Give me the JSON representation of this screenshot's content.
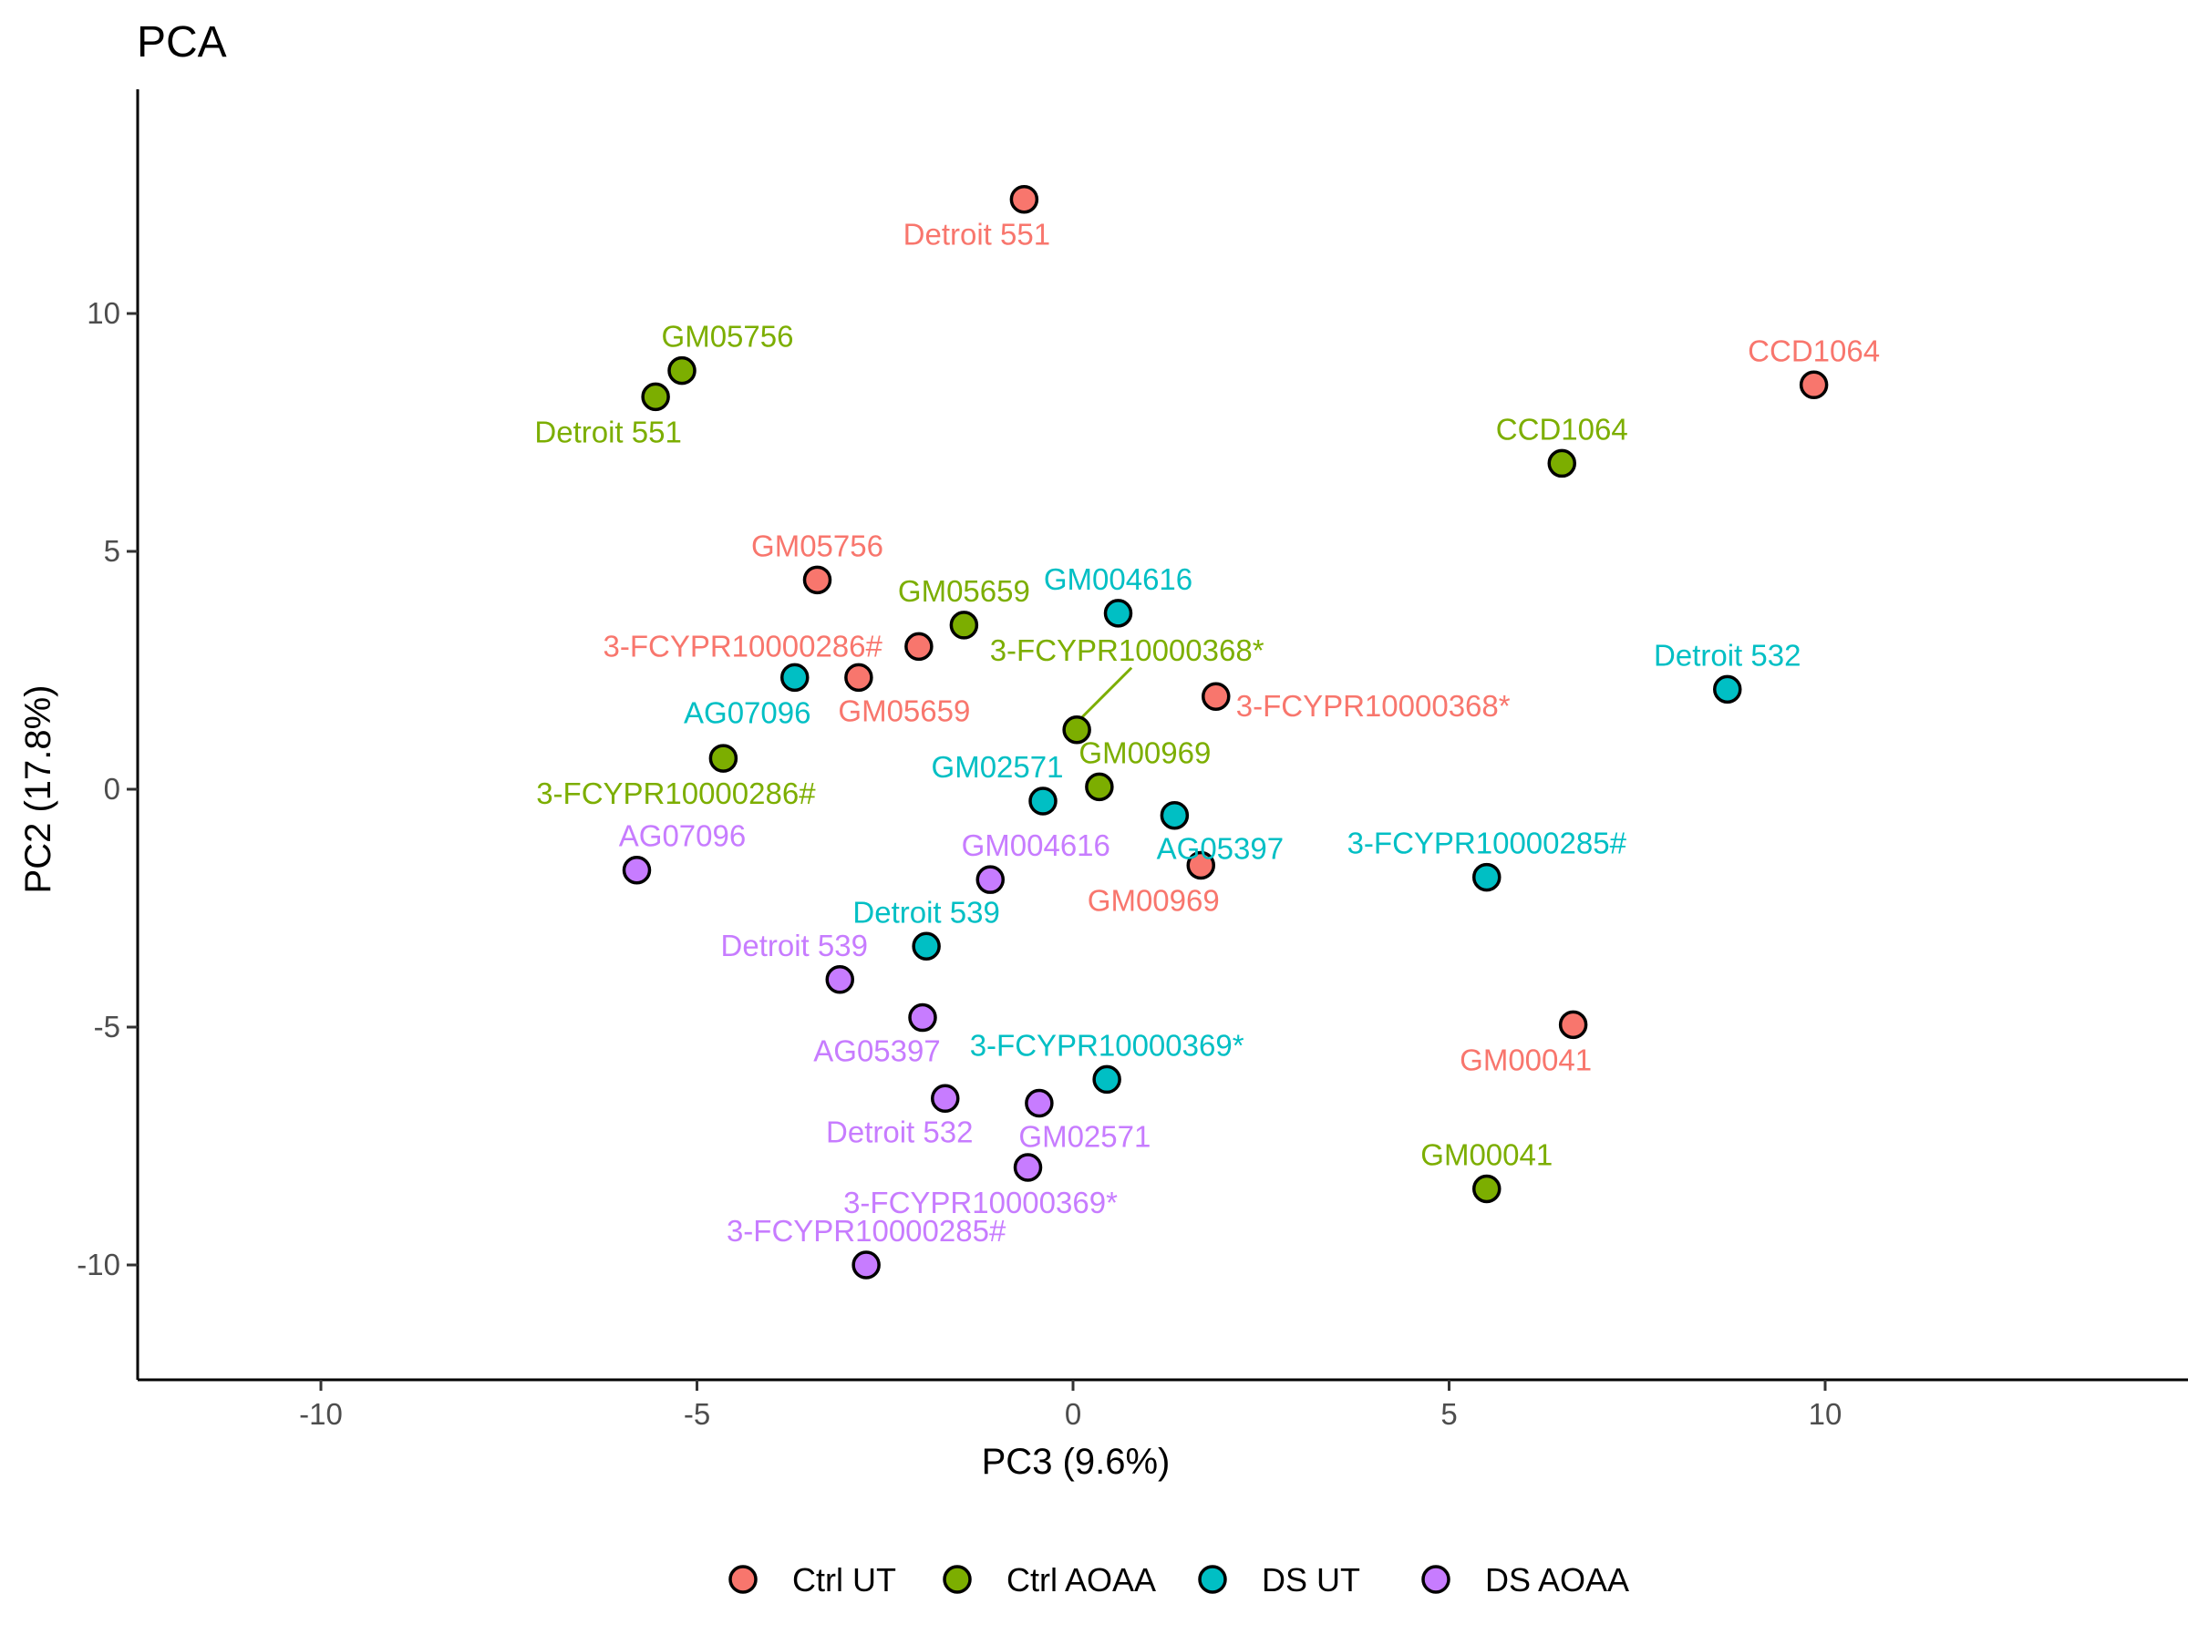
{
  "chart_data": {
    "type": "scatter",
    "title": "PCA",
    "xlabel": "PC3 (9.6%)",
    "ylabel": "PC2 (17.8%)",
    "xlim": [
      -12.4,
      14.8
    ],
    "ylim": [
      -12.5,
      14.6
    ],
    "xticks": [
      -10,
      -5,
      0,
      5,
      10
    ],
    "yticks": [
      -10,
      -5,
      0,
      5,
      10
    ],
    "xtick_labels": [
      "-10",
      "-5",
      "0",
      "5",
      "10"
    ],
    "ytick_labels": [
      "-10",
      "-5",
      "0",
      "5",
      "10"
    ],
    "grid": false,
    "legend_position": "bottom",
    "series": [
      {
        "name": "Ctrl UT",
        "color": "#F8766D",
        "points": [
          {
            "label": "Detroit 551",
            "x": -0.65,
            "y": 12.4,
            "label_pos": "below"
          },
          {
            "label": "CCD1064",
            "x": 9.85,
            "y": 8.5,
            "label_pos": "above"
          },
          {
            "label": "GM05756",
            "x": -3.4,
            "y": 4.4,
            "label_pos": "above"
          },
          {
            "label": "3-FCYPR10000286#",
            "x": -2.05,
            "y": 3.0,
            "label_pos": "left"
          },
          {
            "label": "GM05659",
            "x": -2.85,
            "y": 2.35,
            "label_pos": "below-right"
          },
          {
            "label": "3-FCYPR10000368*",
            "x": 1.9,
            "y": 1.95,
            "label_pos": "right"
          },
          {
            "label": "GM00969",
            "x": 1.7,
            "y": -1.6,
            "label_pos": "below"
          },
          {
            "label": "GM00041",
            "x": 6.65,
            "y": -4.95,
            "label_pos": "below"
          }
        ]
      },
      {
        "name": "Ctrl AOAA",
        "color": "#7CAE00",
        "points": [
          {
            "label": "GM05756",
            "x": -5.2,
            "y": 8.8,
            "label_pos": "above-right"
          },
          {
            "label": "Detroit 551",
            "x": -5.55,
            "y": 8.25,
            "label_pos": "below"
          },
          {
            "label": "CCD1064",
            "x": 6.5,
            "y": 6.85,
            "label_pos": "above"
          },
          {
            "label": "GM05659",
            "x": -1.45,
            "y": 3.45,
            "label_pos": "above"
          },
          {
            "label": "3-FCYPR10000368*",
            "x": 0.05,
            "y": 1.25,
            "label_pos": "above-far"
          },
          {
            "label": "3-FCYPR10000286#",
            "x": -4.65,
            "y": 0.65,
            "label_pos": "below"
          },
          {
            "label": "GM00969",
            "x": 0.35,
            "y": 0.05,
            "label_pos": "above-right"
          },
          {
            "label": "GM00041",
            "x": 5.5,
            "y": -8.4,
            "label_pos": "above"
          }
        ]
      },
      {
        "name": "DS UT",
        "color": "#00BFC4",
        "points": [
          {
            "label": "GM004616",
            "x": 0.6,
            "y": 3.7,
            "label_pos": "above"
          },
          {
            "label": "AG07096",
            "x": -3.7,
            "y": 2.35,
            "label_pos": "below"
          },
          {
            "label": "Detroit 532",
            "x": 8.7,
            "y": 2.1,
            "label_pos": "above"
          },
          {
            "label": "GM02571",
            "x": -0.4,
            "y": -0.25,
            "label_pos": "above-left"
          },
          {
            "label": "AG05397",
            "x": 1.35,
            "y": -0.55,
            "label_pos": "below-right"
          },
          {
            "label": "3-FCYPR10000285#",
            "x": 5.5,
            "y": -1.85,
            "label_pos": "above"
          },
          {
            "label": "Detroit 539",
            "x": -1.95,
            "y": -3.3,
            "label_pos": "above"
          },
          {
            "label": "3-FCYPR10000369*",
            "x": 0.45,
            "y": -6.1,
            "label_pos": "above"
          }
        ]
      },
      {
        "name": "DS AOAA",
        "color": "#C77CFF",
        "points": [
          {
            "label": "AG07096",
            "x": -5.8,
            "y": -1.7,
            "label_pos": "above-right"
          },
          {
            "label": "GM004616",
            "x": -1.1,
            "y": -1.9,
            "label_pos": "above-right"
          },
          {
            "label": "Detroit 539",
            "x": -3.1,
            "y": -4.0,
            "label_pos": "above-left"
          },
          {
            "label": "AG05397",
            "x": -2.0,
            "y": -4.8,
            "label_pos": "below-left"
          },
          {
            "label": "Detroit 532",
            "x": -1.7,
            "y": -6.5,
            "label_pos": "below-left"
          },
          {
            "label": "GM02571",
            "x": -0.45,
            "y": -6.6,
            "label_pos": "below-right"
          },
          {
            "label": "3-FCYPR10000369*",
            "x": -0.6,
            "y": -7.95,
            "label_pos": "below"
          },
          {
            "label": "3-FCYPR10000285#",
            "x": -2.75,
            "y": -10.0,
            "label_pos": "above"
          }
        ]
      }
    ]
  }
}
